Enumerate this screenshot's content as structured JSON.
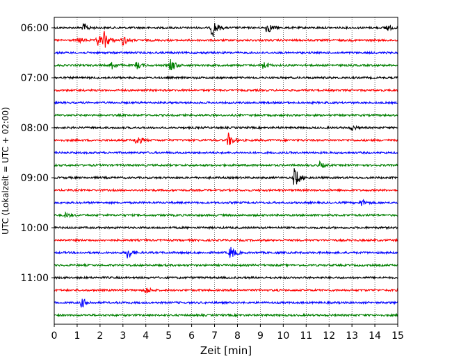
{
  "chart_data": {
    "type": "line",
    "title": "",
    "xlabel": "Zeit  [min]",
    "ylabel": "UTC (Lokalzeit = UTC + 02:00)",
    "xlim": [
      0,
      15
    ],
    "x_ticks": [
      0,
      1,
      2,
      3,
      4,
      5,
      6,
      7,
      8,
      9,
      10,
      11,
      12,
      13,
      14,
      15
    ],
    "y_tick_labels": [
      "06:00",
      "07:00",
      "08:00",
      "09:00",
      "10:00",
      "11:00"
    ],
    "trace_interval_min": 15,
    "start_time": "06:00",
    "end_time": "11:45",
    "grid_x": true,
    "series_colors": [
      "#000000",
      "#ff0000",
      "#0000ff",
      "#008000"
    ],
    "traces": [
      {
        "time": "06:00",
        "color": "#000000",
        "events": [
          [
            1.3,
            0.35
          ],
          [
            6.9,
            0.85
          ],
          [
            9.3,
            0.5
          ],
          [
            14.5,
            0.3
          ]
        ]
      },
      {
        "time": "06:15",
        "color": "#ff0000",
        "events": [
          [
            1.1,
            0.2
          ],
          [
            1.9,
            0.55
          ],
          [
            2.2,
            0.7
          ],
          [
            3.0,
            0.45
          ]
        ]
      },
      {
        "time": "06:30",
        "color": "#0000ff",
        "events": []
      },
      {
        "time": "06:45",
        "color": "#008000",
        "events": [
          [
            2.5,
            0.35
          ],
          [
            3.6,
            0.3
          ],
          [
            5.1,
            0.55
          ],
          [
            9.1,
            0.35
          ]
        ]
      },
      {
        "time": "07:00",
        "color": "#000000",
        "events": []
      },
      {
        "time": "07:15",
        "color": "#ff0000",
        "events": []
      },
      {
        "time": "07:30",
        "color": "#0000ff",
        "events": []
      },
      {
        "time": "07:45",
        "color": "#008000",
        "events": []
      },
      {
        "time": "08:00",
        "color": "#000000",
        "events": [
          [
            13.0,
            0.2
          ]
        ]
      },
      {
        "time": "08:15",
        "color": "#ff0000",
        "events": [
          [
            3.6,
            0.45
          ],
          [
            7.6,
            0.6
          ]
        ]
      },
      {
        "time": "08:30",
        "color": "#0000ff",
        "events": []
      },
      {
        "time": "08:45",
        "color": "#008000",
        "events": [
          [
            11.6,
            0.25
          ]
        ]
      },
      {
        "time": "09:00",
        "color": "#000000",
        "events": [
          [
            10.5,
            0.9
          ]
        ]
      },
      {
        "time": "09:15",
        "color": "#ff0000",
        "events": []
      },
      {
        "time": "09:30",
        "color": "#0000ff",
        "events": [
          [
            13.4,
            0.3
          ]
        ]
      },
      {
        "time": "09:45",
        "color": "#008000",
        "events": [
          [
            0.5,
            0.2
          ]
        ]
      },
      {
        "time": "10:00",
        "color": "#000000",
        "events": []
      },
      {
        "time": "10:15",
        "color": "#ff0000",
        "events": []
      },
      {
        "time": "10:30",
        "color": "#0000ff",
        "events": [
          [
            3.2,
            0.55
          ],
          [
            7.7,
            0.55
          ]
        ]
      },
      {
        "time": "10:45",
        "color": "#008000",
        "events": []
      },
      {
        "time": "11:00",
        "color": "#000000",
        "events": []
      },
      {
        "time": "11:15",
        "color": "#ff0000",
        "events": [
          [
            4.0,
            0.3
          ]
        ]
      },
      {
        "time": "11:30",
        "color": "#0000ff",
        "events": [
          [
            1.2,
            0.4
          ]
        ]
      },
      {
        "time": "11:45",
        "color": "#008000",
        "events": []
      }
    ]
  }
}
